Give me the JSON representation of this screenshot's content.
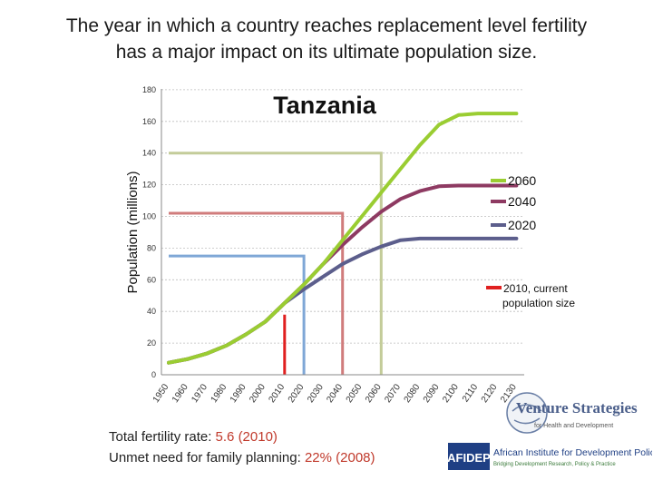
{
  "title_line1": "The year in which a country reaches replacement level fertility",
  "title_line2": "has a major impact on its ultimate population size.",
  "chart_data": {
    "type": "line",
    "title": "Tanzania",
    "ylabel": "Population (millions)",
    "xlabel": "",
    "ylim": [
      0,
      180
    ],
    "yticks": [
      0,
      20,
      40,
      60,
      80,
      100,
      120,
      140,
      160,
      180
    ],
    "grid": true,
    "x": [
      "1950",
      "1960",
      "1970",
      "1980",
      "1990",
      "2000",
      "2010",
      "2020",
      "2030",
      "2040",
      "2050",
      "2060",
      "2070",
      "2080",
      "2090",
      "2100",
      "2110",
      "2120",
      "2130"
    ],
    "series": [
      {
        "name": "2060",
        "color": "#9acd32",
        "values": [
          7.6,
          10,
          13.5,
          18.5,
          25.5,
          33.5,
          45.3,
          57,
          70,
          85,
          100,
          115,
          130,
          145,
          158,
          164,
          165,
          165,
          165
        ]
      },
      {
        "name": "2040",
        "color": "#8e3a62",
        "values": [
          7.6,
          10,
          13.5,
          18.5,
          25.5,
          33.5,
          45.3,
          57,
          70,
          82,
          93,
          103,
          111,
          116,
          119,
          119.5,
          119.5,
          119.5,
          119.5
        ]
      },
      {
        "name": "2020",
        "color": "#5c5e8c",
        "values": [
          7.6,
          10,
          13.5,
          18.5,
          25.5,
          33.5,
          45.3,
          54,
          62,
          70,
          76,
          81,
          85,
          86,
          86,
          86,
          86,
          86,
          86
        ]
      }
    ],
    "reference_lines": [
      {
        "series": "2060",
        "year": "2060",
        "level": 140,
        "color": "#c3cc99"
      },
      {
        "series": "2040",
        "year": "2040",
        "level": 102,
        "color": "#d07c7c"
      },
      {
        "series": "2020",
        "year": "2020",
        "level": 75,
        "color": "#7fa7d6"
      },
      {
        "series": "2010, current population size",
        "year": "2010",
        "level": 38,
        "color": "#e02020"
      }
    ],
    "legend": [
      {
        "label": "2060",
        "color": "#9acd32"
      },
      {
        "label": "2040",
        "color": "#8e3a62"
      },
      {
        "label": "2020",
        "color": "#5c5e8c"
      },
      {
        "label": "2010, current population size",
        "color": "#e02020"
      }
    ]
  },
  "stats": {
    "tfr_label": "Total fertility rate:",
    "tfr_value": "5.6 (2010)",
    "unmet_label": "Unmet need for family planning:",
    "unmet_value": "22% (2008)"
  },
  "logos": {
    "venture_1": "Venture Strategies",
    "venture_2": "for Health and Development",
    "afidep_mark": "AFIDEP",
    "afidep_name": "African Institute for Development Policy",
    "afidep_tagline": "Bridging Development Research, Policy & Practice"
  }
}
